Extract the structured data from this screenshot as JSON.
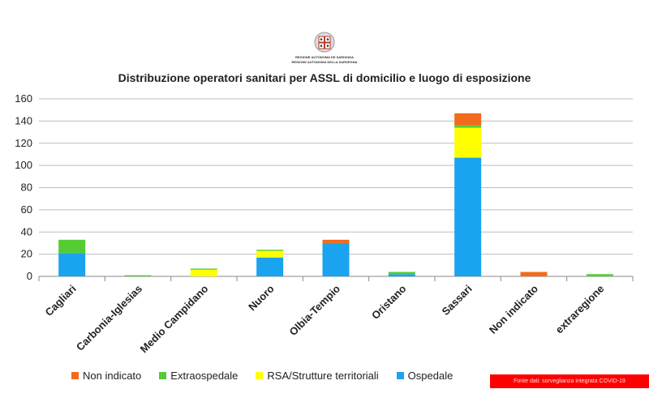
{
  "header": {
    "logo_line1": "REGIONE AUTÒNOMA DE SARDIGNA",
    "logo_line2": "REGIONE AUTONOMA DELLA SARDEGNA"
  },
  "chart_data": {
    "type": "bar",
    "stacked": true,
    "title": "Distribuzione operatori sanitari per ASSL di domicilio e luogo di esposizione",
    "xlabel": "",
    "ylabel": "",
    "ylim": [
      0,
      160
    ],
    "yticks": [
      0,
      20,
      40,
      60,
      80,
      100,
      120,
      140,
      160
    ],
    "grid": true,
    "legend_position": "bottom",
    "categories": [
      "Cagliari",
      "Carbonia-Iglesias",
      "Medio Campidano",
      "Nuoro",
      "Olbia-Tempio",
      "Oristano",
      "Sassari",
      "Non indicato",
      "extraregione"
    ],
    "series": [
      {
        "name": "Ospedale",
        "color": "#1aa3ef",
        "values": [
          21,
          0,
          0,
          17,
          30,
          2,
          107,
          0,
          0
        ]
      },
      {
        "name": "RSA/Strutture territoriali",
        "color": "#ffff00",
        "values": [
          0,
          0,
          6,
          6,
          0,
          0,
          27,
          0,
          0
        ]
      },
      {
        "name": "Extraospedale",
        "color": "#55cc33",
        "values": [
          12,
          1,
          1,
          1,
          0,
          2,
          2,
          0,
          2
        ]
      },
      {
        "name": "Non indicato",
        "color": "#f26b1d",
        "values": [
          0,
          0,
          0,
          0,
          3,
          0,
          11,
          4,
          0
        ]
      }
    ],
    "legend_order": [
      "Non indicato",
      "Extraospedale",
      "RSA/Strutture territoriali",
      "Ospedale"
    ]
  },
  "footer": {
    "source": "Fonte dati: sorveglianza integrata COVID-19"
  }
}
